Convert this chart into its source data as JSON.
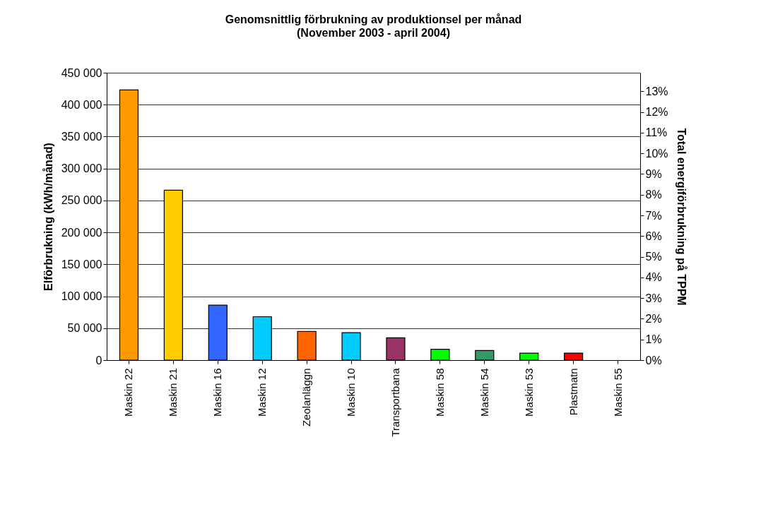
{
  "chart_data": {
    "type": "bar",
    "title": "Genomsnittlig förbrukning av produktionsel per månad",
    "subtitle": "(November 2003 - april 2004)",
    "ylabel": "Elförbrukning (kWh/månad)",
    "y2label": "Total energiförbrukning på TPPM",
    "categories": [
      "Maskin 22",
      "Maskin 21",
      "Maskin 16",
      "Maskin 12",
      "Zeolanläggn",
      "Maskin 10",
      "Transportbana",
      "Maskin 58",
      "Maskin 54",
      "Maskin 53",
      "Plastmatn",
      "Maskin 55"
    ],
    "values": [
      423000,
      266000,
      86000,
      68000,
      45000,
      43000,
      35000,
      17000,
      15000,
      11000,
      11000,
      0
    ],
    "colors": [
      "#ff9900",
      "#ffcc00",
      "#3366ff",
      "#00ccff",
      "#ff6600",
      "#00ccff",
      "#993366",
      "#00ff00",
      "#339966",
      "#00ff00",
      "#ff0000",
      "#00ccff"
    ],
    "ylim": [
      0,
      450000
    ],
    "yticks": [
      0,
      {
        "value": 50000,
        "label": "50 000"
      },
      {
        "value": 100000,
        "label": "100 000"
      },
      {
        "value": 150000,
        "label": "150 000"
      },
      {
        "value": 200000,
        "label": "200 000"
      },
      {
        "value": 250000,
        "label": "250 000"
      },
      {
        "value": 300000,
        "label": "300 000"
      },
      {
        "value": 350000,
        "label": "350 000"
      },
      {
        "value": 400000,
        "label": "400 000"
      },
      {
        "value": 450000,
        "label": "450 000"
      }
    ],
    "y2lim": [
      0,
      13.9
    ],
    "y2ticks": [
      {
        "value": 0,
        "label": "0%"
      },
      {
        "value": 1,
        "label": "1%"
      },
      {
        "value": 2,
        "label": "2%"
      },
      {
        "value": 3,
        "label": "3%"
      },
      {
        "value": 4,
        "label": "4%"
      },
      {
        "value": 5,
        "label": "5%"
      },
      {
        "value": 6,
        "label": "6%"
      },
      {
        "value": 7,
        "label": "7%"
      },
      {
        "value": 8,
        "label": "8%"
      },
      {
        "value": 9,
        "label": "9%"
      },
      {
        "value": 10,
        "label": "10%"
      },
      {
        "value": 11,
        "label": "11%"
      },
      {
        "value": 12,
        "label": "12%"
      },
      {
        "value": 13,
        "label": "13%"
      }
    ],
    "grid": "y"
  }
}
